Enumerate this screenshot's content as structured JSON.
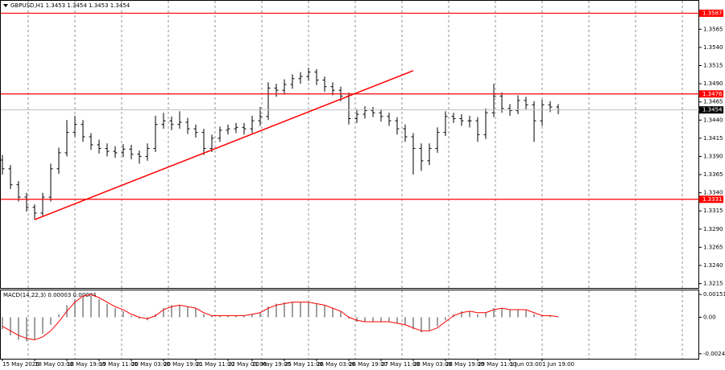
{
  "chart_data": [
    {
      "type": "ohlc",
      "title": "GBPUSD,H1  1.3453 1.3454 1.3453 1.3454",
      "color": "#000000",
      "categories": [
        "15 May 2026",
        null,
        null,
        null,
        "18 May 03:00",
        null,
        null,
        null,
        "18 May 19:00",
        null,
        null,
        null,
        "19 May 11:00",
        null,
        null,
        null,
        "20 May 03:00",
        null,
        null,
        null,
        "20 May 19:00",
        null,
        null,
        null,
        "21 May 11:00",
        null,
        null,
        null,
        "22 May 03:00",
        null,
        null,
        "22 May 19:00",
        null,
        null,
        null,
        "25 May 11:00",
        null,
        null,
        null,
        "26 May 03:00",
        null,
        null,
        null,
        "26 May 19:00",
        null,
        null,
        null,
        "27 May 11:00",
        null,
        null,
        null,
        "28 May 03:00",
        null,
        null,
        null,
        "28 May 19:00",
        null,
        null,
        null,
        "29 May 11:00",
        null,
        null,
        null,
        "1 Jun 03:00",
        null,
        null,
        null,
        "1 Jun 19:00",
        null,
        null
      ],
      "ohlc": [
        [
          1.3385,
          1.3392,
          1.3365,
          1.3373
        ],
        [
          1.3373,
          1.3378,
          1.3345,
          1.3351
        ],
        [
          1.3351,
          1.3356,
          1.3328,
          1.3334
        ],
        [
          1.3334,
          1.334,
          1.3314,
          1.332
        ],
        [
          1.332,
          1.3324,
          1.3303,
          1.3312
        ],
        [
          1.3312,
          1.334,
          1.3308,
          1.3334
        ],
        [
          1.3334,
          1.338,
          1.3328,
          1.3373
        ],
        [
          1.3373,
          1.3402,
          1.3366,
          1.3395
        ],
        [
          1.3395,
          1.344,
          1.339,
          1.3423
        ],
        [
          1.3423,
          1.3446,
          1.3417,
          1.3434
        ],
        [
          1.3434,
          1.344,
          1.341,
          1.3417
        ],
        [
          1.3417,
          1.3422,
          1.3399,
          1.3406
        ],
        [
          1.3406,
          1.3413,
          1.3394,
          1.3401
        ],
        [
          1.3401,
          1.3408,
          1.339,
          1.3397
        ],
        [
          1.3397,
          1.3404,
          1.3388,
          1.3395
        ],
        [
          1.3395,
          1.3407,
          1.3389,
          1.34
        ],
        [
          1.34,
          1.3406,
          1.3386,
          1.3393
        ],
        [
          1.3393,
          1.3398,
          1.338,
          1.339
        ],
        [
          1.339,
          1.3408,
          1.3384,
          1.3401
        ],
        [
          1.3401,
          1.3446,
          1.3396,
          1.3434
        ],
        [
          1.3434,
          1.345,
          1.3428,
          1.3439
        ],
        [
          1.3439,
          1.3445,
          1.3426,
          1.3434
        ],
        [
          1.3434,
          1.3452,
          1.3428,
          1.3437
        ],
        [
          1.3437,
          1.3443,
          1.3421,
          1.3428
        ],
        [
          1.3428,
          1.3434,
          1.3416,
          1.3423
        ],
        [
          1.3423,
          1.3428,
          1.3392,
          1.3401
        ],
        [
          1.3401,
          1.342,
          1.3396,
          1.3415
        ],
        [
          1.3415,
          1.3431,
          1.341,
          1.3426
        ],
        [
          1.3426,
          1.3434,
          1.342,
          1.3428
        ],
        [
          1.3428,
          1.3436,
          1.3422,
          1.343
        ],
        [
          1.343,
          1.3436,
          1.342,
          1.3428
        ],
        [
          1.3428,
          1.3446,
          1.3422,
          1.3439
        ],
        [
          1.3439,
          1.3458,
          1.3432,
          1.3445
        ],
        [
          1.3445,
          1.3492,
          1.344,
          1.3484
        ],
        [
          1.3484,
          1.349,
          1.3472,
          1.3481
        ],
        [
          1.3481,
          1.3496,
          1.3475,
          1.3489
        ],
        [
          1.3489,
          1.3503,
          1.3483,
          1.3497
        ],
        [
          1.3497,
          1.3506,
          1.349,
          1.35
        ],
        [
          1.35,
          1.3512,
          1.3494,
          1.3506
        ],
        [
          1.3506,
          1.351,
          1.3488,
          1.3495
        ],
        [
          1.3495,
          1.35,
          1.3479,
          1.3486
        ],
        [
          1.3486,
          1.3492,
          1.3474,
          1.3481
        ],
        [
          1.3481,
          1.3486,
          1.3466,
          1.3473
        ],
        [
          1.3473,
          1.3478,
          1.3434,
          1.3442
        ],
        [
          1.3442,
          1.3455,
          1.3436,
          1.3448
        ],
        [
          1.3448,
          1.3459,
          1.3442,
          1.3453
        ],
        [
          1.3453,
          1.3458,
          1.3444,
          1.345
        ],
        [
          1.345,
          1.3455,
          1.3438,
          1.3445
        ],
        [
          1.3445,
          1.345,
          1.3432,
          1.3439
        ],
        [
          1.3439,
          1.3444,
          1.342,
          1.3428
        ],
        [
          1.3428,
          1.3434,
          1.341,
          1.3417
        ],
        [
          1.3417,
          1.3422,
          1.3365,
          1.3401
        ],
        [
          1.3401,
          1.3408,
          1.337,
          1.3384
        ],
        [
          1.3384,
          1.3408,
          1.3378,
          1.3401
        ],
        [
          1.3401,
          1.343,
          1.3395,
          1.3423
        ],
        [
          1.3423,
          1.3452,
          1.3418,
          1.3445
        ],
        [
          1.3445,
          1.345,
          1.3436,
          1.3442
        ],
        [
          1.3442,
          1.3448,
          1.3432,
          1.3439
        ],
        [
          1.3439,
          1.3446,
          1.343,
          1.3439
        ],
        [
          1.3439,
          1.3444,
          1.341,
          1.342
        ],
        [
          1.342,
          1.3456,
          1.3414,
          1.345
        ],
        [
          1.345,
          1.349,
          1.3444,
          1.3473
        ],
        [
          1.3473,
          1.3478,
          1.345,
          1.3456
        ],
        [
          1.3456,
          1.3462,
          1.3446,
          1.3453
        ],
        [
          1.3453,
          1.3474,
          1.3448,
          1.3467
        ],
        [
          1.3467,
          1.3472,
          1.3455,
          1.3461
        ],
        [
          1.3461,
          1.3466,
          1.341,
          1.3439
        ],
        [
          1.3439,
          1.3468,
          1.3432,
          1.3461
        ],
        [
          1.3461,
          1.3466,
          1.3451,
          1.3458
        ],
        [
          1.3458,
          1.3462,
          1.3448,
          1.3454
        ]
      ],
      "ylim": [
        1.3209,
        1.3603
      ],
      "yticks": [
        1.3565,
        {
          "value": 1.354,
          "label": "1.3540"
        },
        1.3515,
        {
          "value": 1.349,
          "label": "1.3490"
        },
        1.3465,
        {
          "value": 1.344,
          "label": "1.3440"
        },
        1.3415,
        {
          "value": 1.339,
          "label": "1.3390"
        },
        1.3365,
        {
          "value": 1.334,
          "label": "1.3340"
        },
        1.3315,
        {
          "value": 1.329,
          "label": "1.3290"
        },
        1.3265,
        {
          "value": 1.324,
          "label": "1.3240"
        },
        1.3215
      ],
      "levels": [
        1.3587,
        1.3476,
        1.3331
      ],
      "level_color": "#ff0000",
      "last_price": 1.3454,
      "trendline": {
        "start": [
          4,
          1.3303
        ],
        "end": [
          51,
          1.3508
        ],
        "color": "#ff0000"
      }
    },
    {
      "type": "macd",
      "title": "MACD(14,22,3) 0.00003 0.00004",
      "ylim": [
        -0.00275,
        0.00178
      ],
      "yticks": [
        0.00151,
        {
          "value": 0,
          "label": "0.00"
        },
        -0.00242
      ],
      "histogram": {
        "color": "#a0a0a0",
        "values": [
          -0.0008,
          -0.0012,
          -0.0015,
          -0.0016,
          -0.0015,
          -0.0011,
          -0.0005,
          0.0002,
          0.0008,
          0.0012,
          0.0015,
          0.0014,
          0.0012,
          0.0009,
          0.0006,
          0.0004,
          0.0001,
          -0.0001,
          -0.0002,
          0.0002,
          0.0006,
          0.0008,
          0.0008,
          0.0007,
          0.0006,
          0.0002,
          0.0001,
          0.0001,
          0.0001,
          0.0001,
          0.0001,
          0.0002,
          0.0003,
          0.0007,
          0.0009,
          0.001,
          0.001,
          0.001,
          0.001,
          0.0009,
          0.0008,
          0.0006,
          0.0004,
          -0.0001,
          -0.0003,
          -0.0003,
          -0.0003,
          -0.0003,
          -0.0003,
          -0.0004,
          -0.0005,
          -0.0008,
          -0.001,
          -0.0009,
          -0.0006,
          -0.0002,
          0.0002,
          0.0004,
          0.0004,
          0.0002,
          0.0003,
          0.0006,
          0.0006,
          0.0005,
          0.0005,
          0.0005,
          0.0002,
          0.0001,
          0.0001,
          3e-05
        ]
      },
      "signal": {
        "color": "#ff0000",
        "values": [
          -0.0006,
          -0.0009,
          -0.0012,
          -0.0014,
          -0.0015,
          -0.0013,
          -0.0009,
          -0.0003,
          0.0004,
          0.001,
          0.0014,
          0.0015,
          0.0013,
          0.001,
          0.0007,
          0.0005,
          0.0002,
          0,
          -0.0001,
          0.0001,
          0.0005,
          0.0007,
          0.0008,
          0.0007,
          0.0006,
          0.0003,
          0.0001,
          0.0001,
          0.0001,
          0.0001,
          0.0001,
          0.0002,
          0.0003,
          0.0006,
          0.0008,
          0.0009,
          0.001,
          0.001,
          0.001,
          0.0009,
          0.0008,
          0.0006,
          0.0004,
          0,
          -0.0002,
          -0.0003,
          -0.0003,
          -0.0003,
          -0.0003,
          -0.0004,
          -0.0005,
          -0.0007,
          -0.0009,
          -0.0009,
          -0.0007,
          -0.0003,
          0.0001,
          0.0003,
          0.0004,
          0.0003,
          0.0003,
          0.0005,
          0.0006,
          0.0005,
          0.0005,
          0.0005,
          0.0003,
          0.0001,
          0.0001,
          4e-05
        ]
      }
    }
  ]
}
